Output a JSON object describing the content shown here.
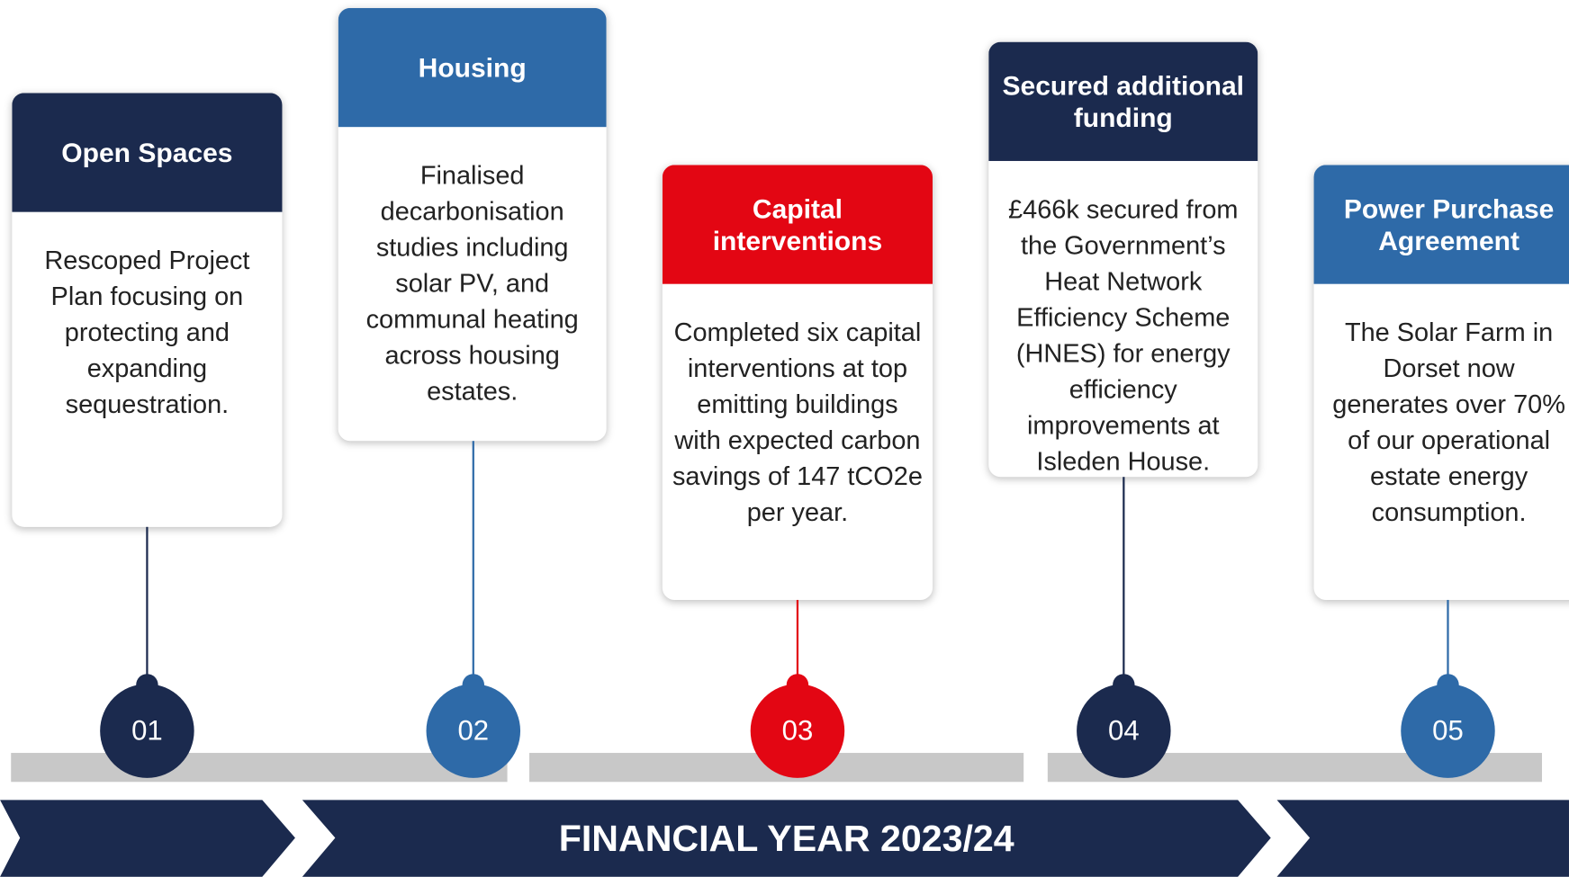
{
  "items": [
    {
      "number": "01",
      "title": "Open Spaces",
      "body": "Rescoped Project Plan focusing on protecting and expanding sequestration."
    },
    {
      "number": "02",
      "title": "Housing",
      "body": "Finalised decarbonisation studies including solar PV, and communal heating across housing estates."
    },
    {
      "number": "03",
      "title": "Capital interventions",
      "body": "Completed six capital interventions at top emitting buildings with expected carbon savings of 147 tCO2e per year."
    },
    {
      "number": "04",
      "title": "Secured additional funding",
      "body": "£466k secured from the Government’s Heat Network Efficiency Scheme (HNES) for energy efficiency improvements at Isleden House."
    },
    {
      "number": "05",
      "title": "Power Purchase Agreement",
      "body": "The Solar Farm in Dorset now generates over 70% of our operational estate energy consumption."
    }
  ],
  "footer": {
    "title": "FINANCIAL YEAR 2023/24"
  }
}
